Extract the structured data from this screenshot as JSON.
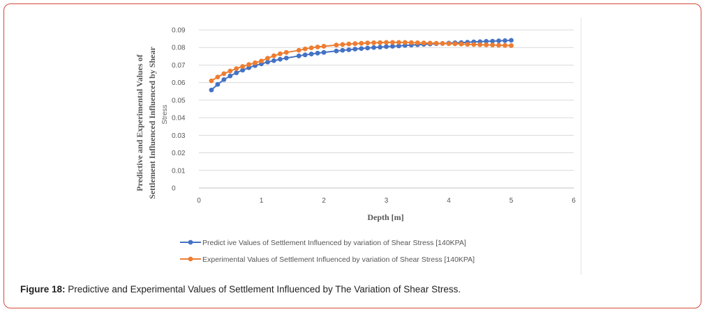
{
  "caption": {
    "label": "Figure 18:",
    "text": " Predictive and Experimental Values of Settlement Influenced by The Variation of Shear Stress."
  },
  "chart_data": {
    "type": "line",
    "title": "",
    "xlabel": "Depth  [m]",
    "ylabel_line1": "Predictive  and  Experimental  Values  of",
    "ylabel_line2": "Settlement  Influenced  Influenced  by  Shear",
    "ylabel_line3": "Stress",
    "xlim": [
      0,
      6
    ],
    "ylim": [
      0,
      0.09
    ],
    "x_ticks": [
      "0",
      "1",
      "2",
      "3",
      "4",
      "5",
      "6"
    ],
    "y_ticks": [
      "0",
      "0.01",
      "0.02",
      "0.03",
      "0.04",
      "0.05",
      "0.06",
      "0.07",
      "0.08",
      "0.09"
    ],
    "grid": true,
    "legend_position": "bottom",
    "x": [
      0.2,
      0.3,
      0.4,
      0.5,
      0.6,
      0.7,
      0.8,
      0.9,
      1.0,
      1.1,
      1.2,
      1.3,
      1.4,
      1.6,
      1.7,
      1.8,
      1.9,
      2.0,
      2.2,
      2.3,
      2.4,
      2.5,
      2.6,
      2.7,
      2.8,
      2.9,
      3.0,
      3.1,
      3.2,
      3.3,
      3.4,
      3.5,
      3.6,
      3.7,
      3.8,
      3.9,
      4.0,
      4.1,
      4.2,
      4.3,
      4.4,
      4.5,
      4.6,
      4.7,
      4.8,
      4.9,
      5.0
    ],
    "series": [
      {
        "name": "Predict ive Values of Settlement Influenced by variation of Shear Stress [140KPA]",
        "color": "#4472c4",
        "values": [
          0.0558,
          0.059,
          0.0617,
          0.0638,
          0.0656,
          0.0671,
          0.0685,
          0.0697,
          0.0707,
          0.0717,
          0.0725,
          0.0733,
          0.074,
          0.0752,
          0.0758,
          0.0763,
          0.0768,
          0.0772,
          0.078,
          0.0784,
          0.0787,
          0.0791,
          0.0794,
          0.0797,
          0.08,
          0.0802,
          0.0805,
          0.0807,
          0.0809,
          0.0812,
          0.0814,
          0.0816,
          0.0818,
          0.082,
          0.0822,
          0.0823,
          0.0825,
          0.0827,
          0.0828,
          0.083,
          0.0832,
          0.0833,
          0.0835,
          0.0836,
          0.0838,
          0.0839,
          0.0841
        ]
      },
      {
        "name": "Experimental  Values of Settlement Influenced by variation of Shear Stress [140KPA]",
        "color": "#ed7d31",
        "values": [
          0.061,
          0.0632,
          0.0651,
          0.0666,
          0.068,
          0.0692,
          0.0703,
          0.0713,
          0.0723,
          0.0739,
          0.0753,
          0.0764,
          0.0772,
          0.0784,
          0.0792,
          0.0798,
          0.0803,
          0.0807,
          0.0814,
          0.0817,
          0.082,
          0.0822,
          0.0824,
          0.0826,
          0.0827,
          0.0828,
          0.0829,
          0.0829,
          0.0829,
          0.0829,
          0.0828,
          0.0827,
          0.0826,
          0.0825,
          0.0824,
          0.0823,
          0.0822,
          0.0821,
          0.082,
          0.0818,
          0.0817,
          0.0816,
          0.0815,
          0.0814,
          0.0813,
          0.0812,
          0.0811
        ]
      }
    ]
  }
}
